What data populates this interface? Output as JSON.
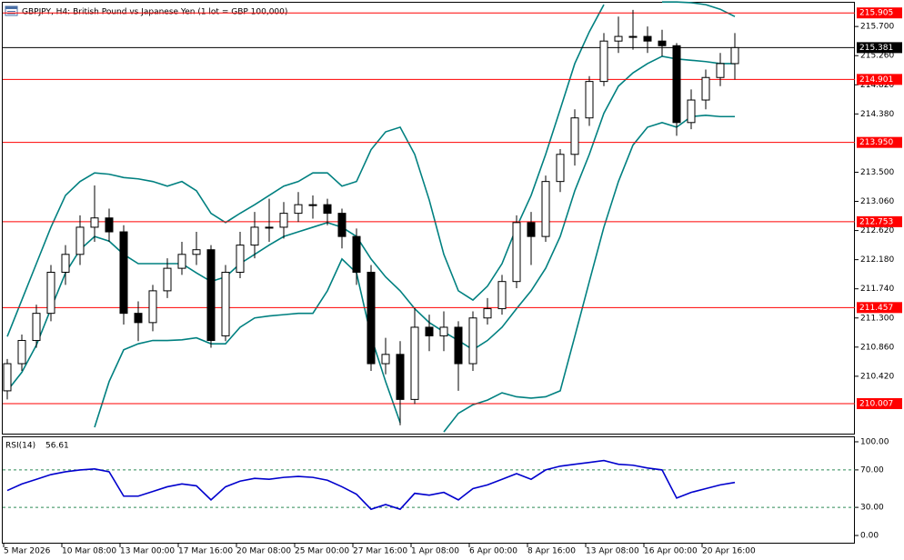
{
  "chart_data": [
    {
      "type": "candlestick",
      "title": "GBPJPY, H4:  British Pound vs Japanese Yen (1 lot = GBP 100,000)",
      "categories": [
        "5 Mar 2026",
        null,
        null,
        null,
        "10 Mar 08:00",
        null,
        null,
        null,
        "13 Mar 00:00",
        null,
        null,
        null,
        "17 Mar 16:00",
        null,
        null,
        null,
        "20 Mar 08:00",
        null,
        null,
        null,
        "25 Mar 00:00",
        null,
        null,
        null,
        "27 Mar 16:00",
        null,
        null,
        null,
        "1 Apr 08:00",
        null,
        null,
        null,
        "6 Apr 00:00",
        null,
        null,
        null,
        "8 Apr 16:00",
        null,
        null,
        null,
        "13 Apr 08:00",
        null,
        null,
        null,
        "16 Apr 00:00",
        null,
        null,
        null,
        "20 Apr 16:00",
        null,
        null
      ],
      "open": [
        210.2,
        210.61,
        210.96,
        211.37,
        211.99,
        212.26,
        212.67,
        212.81,
        212.6,
        211.37,
        211.23,
        211.71,
        212.05,
        212.26,
        212.33,
        211.03,
        211.99,
        212.4,
        212.67,
        212.67,
        212.88,
        213.01,
        213.01,
        212.88,
        212.53,
        211.99,
        210.61,
        210.75,
        210.07,
        211.16,
        211.03,
        211.16,
        210.61,
        211.3,
        211.44,
        211.85,
        212.74,
        212.53,
        213.36,
        213.77,
        214.32,
        214.87,
        215.48,
        215.55,
        215.55,
        215.48,
        215.41,
        214.25,
        214.59,
        214.93,
        215.14
      ],
      "high": [
        210.68,
        211.05,
        211.5,
        212.1,
        212.4,
        212.85,
        213.3,
        212.95,
        212.7,
        211.55,
        211.8,
        212.2,
        212.45,
        212.6,
        212.4,
        212.1,
        212.6,
        212.9,
        213.1,
        213.05,
        213.2,
        213.15,
        213.1,
        212.95,
        212.65,
        212.1,
        211.0,
        210.95,
        211.45,
        211.35,
        211.4,
        211.25,
        211.4,
        211.6,
        211.95,
        212.85,
        212.9,
        213.45,
        213.85,
        214.45,
        214.95,
        215.6,
        215.85,
        215.95,
        215.7,
        215.65,
        215.45,
        214.75,
        215.05,
        215.3,
        215.6
      ],
      "low": [
        210.07,
        210.5,
        210.85,
        211.25,
        211.8,
        212.1,
        212.45,
        212.45,
        211.2,
        210.95,
        211.1,
        211.6,
        211.95,
        212.1,
        210.85,
        210.95,
        211.9,
        212.2,
        212.45,
        212.5,
        212.75,
        212.8,
        212.7,
        212.35,
        211.8,
        210.5,
        210.45,
        209.68,
        210.0,
        210.8,
        210.8,
        210.2,
        210.5,
        211.2,
        211.35,
        211.75,
        212.1,
        212.45,
        213.2,
        213.6,
        214.2,
        214.8,
        215.3,
        215.35,
        215.3,
        215.25,
        214.05,
        214.15,
        214.45,
        214.8,
        214.9
      ],
      "close": [
        210.61,
        210.96,
        211.37,
        211.99,
        212.26,
        212.67,
        212.81,
        212.6,
        211.37,
        211.23,
        211.71,
        212.05,
        212.26,
        212.33,
        210.96,
        211.99,
        212.4,
        212.67,
        212.67,
        212.88,
        213.01,
        213.01,
        212.88,
        212.53,
        211.99,
        210.61,
        210.75,
        210.07,
        211.16,
        211.03,
        211.16,
        210.61,
        211.3,
        211.44,
        211.85,
        212.74,
        212.53,
        213.36,
        213.77,
        214.32,
        214.87,
        215.48,
        215.55,
        215.55,
        215.48,
        215.41,
        214.25,
        214.59,
        214.93,
        215.14,
        215.381
      ],
      "bands": {
        "color": "#008080",
        "upper": [
          211.02,
          211.57,
          212.12,
          212.67,
          213.15,
          213.36,
          213.49,
          213.47,
          213.42,
          213.4,
          213.36,
          213.29,
          213.36,
          213.22,
          212.88,
          212.74,
          212.88,
          213.01,
          213.15,
          213.29,
          213.36,
          213.49,
          213.49,
          213.29,
          213.36,
          213.84,
          214.11,
          214.18,
          213.77,
          213.08,
          212.26,
          211.71,
          211.57,
          211.78,
          212.12,
          212.67,
          213.15,
          213.77,
          214.45,
          215.14,
          215.62,
          216.03,
          null,
          null,
          null,
          216.07,
          216.07,
          216.06,
          216.03,
          215.96,
          215.85
        ],
        "middle": [
          210.2,
          210.48,
          210.89,
          211.44,
          211.98,
          212.33,
          212.53,
          212.46,
          212.26,
          212.12,
          212.12,
          212.12,
          212.12,
          211.98,
          211.85,
          211.92,
          212.12,
          212.26,
          212.4,
          212.53,
          212.6,
          212.67,
          212.74,
          212.67,
          212.53,
          212.19,
          211.92,
          211.71,
          211.44,
          211.23,
          211.09,
          210.96,
          210.82,
          210.96,
          211.16,
          211.44,
          211.71,
          212.05,
          212.53,
          213.22,
          213.77,
          214.39,
          214.8,
          215.0,
          215.14,
          215.25,
          215.21,
          215.19,
          215.17,
          215.14,
          215.14
        ],
        "lower": [
          null,
          null,
          null,
          null,
          null,
          null,
          209.65,
          210.34,
          210.82,
          210.91,
          210.96,
          210.96,
          210.97,
          211.0,
          210.91,
          210.91,
          211.16,
          211.3,
          211.33,
          211.35,
          211.37,
          211.37,
          211.71,
          212.19,
          211.98,
          211.02,
          210.34,
          209.72,
          null,
          null,
          209.58,
          209.86,
          209.99,
          210.06,
          210.17,
          210.11,
          210.09,
          210.11,
          210.2,
          211.02,
          211.85,
          212.67,
          213.36,
          213.91,
          214.18,
          214.25,
          214.18,
          214.34,
          214.36,
          214.34,
          214.34
        ]
      },
      "levels": [
        {
          "value": 215.905,
          "label": "215.905",
          "color": "#ff0000"
        },
        {
          "value": 215.381,
          "label": "215.381",
          "color": "#000000"
        },
        {
          "value": 214.901,
          "label": "214.901",
          "color": "#ff0000"
        },
        {
          "value": 213.95,
          "label": "213.950",
          "color": "#ff0000"
        },
        {
          "value": 212.753,
          "label": "212.753",
          "color": "#ff0000"
        },
        {
          "value": 211.457,
          "label": "211.457",
          "color": "#ff0000"
        },
        {
          "value": 210.007,
          "label": "210.007",
          "color": "#ff0000"
        }
      ],
      "ylim": [
        209.54,
        216.1
      ],
      "yticks": [
        {
          "value": 215.7,
          "label": "215.700"
        },
        {
          "value": 215.26,
          "label": "215.260"
        },
        {
          "value": 214.82,
          "label": "214.820"
        },
        {
          "value": 214.38,
          "label": "214.380"
        },
        {
          "value": 213.5,
          "label": "213.500"
        },
        {
          "value": 213.06,
          "label": "213.060"
        },
        {
          "value": 212.62,
          "label": "212.620"
        },
        {
          "value": 212.18,
          "label": "212.180"
        },
        {
          "value": 211.74,
          "label": "211.740"
        },
        {
          "value": 211.3,
          "label": "211.300"
        },
        {
          "value": 210.86,
          "label": "210.860"
        },
        {
          "value": 210.42,
          "label": "210.420"
        }
      ]
    },
    {
      "type": "line",
      "title": "RSI(14)",
      "color": "#0000cd",
      "values": [
        48,
        55,
        60,
        65,
        68,
        70,
        71,
        68,
        42,
        42,
        47,
        52,
        55,
        53,
        38,
        52,
        58,
        61,
        60,
        62,
        63,
        62,
        59,
        52,
        44,
        28,
        33,
        28,
        45,
        43,
        46,
        38,
        50,
        54,
        60,
        66,
        60,
        70,
        74,
        76,
        78,
        80,
        76,
        75,
        72,
        70,
        40,
        46,
        50,
        54,
        56.61
      ],
      "ylim": [
        -8.7,
        105.8
      ],
      "yticks": [
        {
          "value": 100,
          "label": "100.00"
        },
        {
          "value": 70,
          "label": "70.00"
        },
        {
          "value": 30,
          "label": "30.00"
        },
        {
          "value": 0,
          "label": "0.00"
        }
      ],
      "dashed_levels": [
        70,
        30
      ]
    }
  ]
}
